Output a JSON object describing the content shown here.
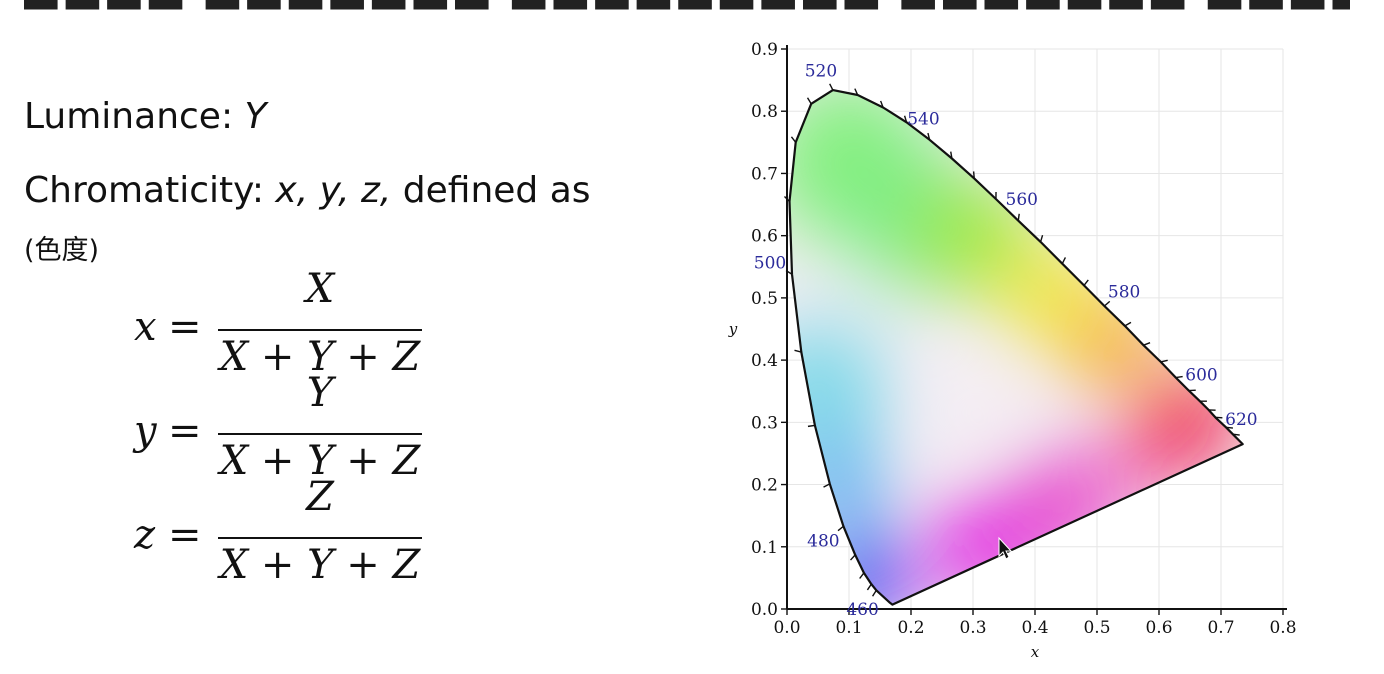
{
  "slide": {
    "luminance_label": "Luminance: ",
    "luminance_var": "Y",
    "chroma_label": "Chromaticity: ",
    "chroma_vars": "x, y, z,",
    "chroma_suffix": " defined as",
    "chinese_note": "(色度)"
  },
  "equations": [
    {
      "lhs": "x",
      "numerator": "X",
      "denominator_terms": [
        "X",
        "+",
        "Y",
        "+",
        "Z"
      ]
    },
    {
      "lhs": "y",
      "numerator": "Y",
      "denominator_terms": [
        "X",
        "+",
        "Y",
        "+",
        "Z"
      ]
    },
    {
      "lhs": "z",
      "numerator": "Z",
      "denominator_terms": [
        "X",
        "+",
        "Y",
        "+",
        "Z"
      ]
    }
  ],
  "equals_sign": "=",
  "chart_data": {
    "type": "chromaticity-diagram",
    "xlabel": "x",
    "ylabel": "y",
    "xlim": [
      0.0,
      0.8
    ],
    "ylim": [
      0.0,
      0.9
    ],
    "x_ticks": [
      "0.0",
      "0.1",
      "0.2",
      "0.3",
      "0.4",
      "0.5",
      "0.6",
      "0.7",
      "0.8"
    ],
    "y_ticks": [
      "0.0",
      "0.1",
      "0.2",
      "0.3",
      "0.4",
      "0.5",
      "0.6",
      "0.7",
      "0.8",
      "0.9"
    ],
    "grid": true,
    "locus": [
      {
        "wl": 450,
        "x": 0.17,
        "y": 0.007
      },
      {
        "wl": 455,
        "x": 0.165,
        "y": 0.011
      },
      {
        "wl": 460,
        "x": 0.144,
        "y": 0.03
      },
      {
        "wl": 465,
        "x": 0.136,
        "y": 0.04
      },
      {
        "wl": 470,
        "x": 0.124,
        "y": 0.058
      },
      {
        "wl": 475,
        "x": 0.11,
        "y": 0.087
      },
      {
        "wl": 480,
        "x": 0.091,
        "y": 0.133
      },
      {
        "wl": 485,
        "x": 0.069,
        "y": 0.201
      },
      {
        "wl": 490,
        "x": 0.045,
        "y": 0.295
      },
      {
        "wl": 495,
        "x": 0.023,
        "y": 0.413
      },
      {
        "wl": 500,
        "x": 0.008,
        "y": 0.538
      },
      {
        "wl": 505,
        "x": 0.004,
        "y": 0.655
      },
      {
        "wl": 510,
        "x": 0.014,
        "y": 0.75
      },
      {
        "wl": 515,
        "x": 0.039,
        "y": 0.812
      },
      {
        "wl": 520,
        "x": 0.074,
        "y": 0.834
      },
      {
        "wl": 525,
        "x": 0.114,
        "y": 0.826
      },
      {
        "wl": 530,
        "x": 0.155,
        "y": 0.806
      },
      {
        "wl": 535,
        "x": 0.193,
        "y": 0.782
      },
      {
        "wl": 540,
        "x": 0.23,
        "y": 0.754
      },
      {
        "wl": 545,
        "x": 0.266,
        "y": 0.724
      },
      {
        "wl": 550,
        "x": 0.302,
        "y": 0.692
      },
      {
        "wl": 555,
        "x": 0.337,
        "y": 0.659
      },
      {
        "wl": 560,
        "x": 0.373,
        "y": 0.624
      },
      {
        "wl": 565,
        "x": 0.409,
        "y": 0.59
      },
      {
        "wl": 570,
        "x": 0.444,
        "y": 0.555
      },
      {
        "wl": 575,
        "x": 0.479,
        "y": 0.52
      },
      {
        "wl": 580,
        "x": 0.512,
        "y": 0.487
      },
      {
        "wl": 585,
        "x": 0.545,
        "y": 0.455
      },
      {
        "wl": 590,
        "x": 0.575,
        "y": 0.424
      },
      {
        "wl": 595,
        "x": 0.603,
        "y": 0.397
      },
      {
        "wl": 600,
        "x": 0.627,
        "y": 0.372
      },
      {
        "wl": 605,
        "x": 0.648,
        "y": 0.351
      },
      {
        "wl": 610,
        "x": 0.666,
        "y": 0.334
      },
      {
        "wl": 615,
        "x": 0.68,
        "y": 0.32
      },
      {
        "wl": 620,
        "x": 0.691,
        "y": 0.308
      },
      {
        "wl": 630,
        "x": 0.708,
        "y": 0.292
      },
      {
        "wl": 640,
        "x": 0.719,
        "y": 0.281
      },
      {
        "wl": 700,
        "x": 0.735,
        "y": 0.265
      }
    ],
    "wavelength_labels": [
      {
        "text": "460",
        "wl": 460
      },
      {
        "text": "480",
        "wl": 480
      },
      {
        "text": "500",
        "wl": 500
      },
      {
        "text": "520",
        "wl": 520
      },
      {
        "text": "540",
        "wl": 540
      },
      {
        "text": "560",
        "wl": 560
      },
      {
        "text": "580",
        "wl": 580
      },
      {
        "text": "600",
        "wl": 600
      },
      {
        "text": "620",
        "wl": 620
      }
    ],
    "color_anchors": {
      "green": "#7ff07a",
      "yellow_green": "#9ee83a",
      "yellow": "#f2e83a",
      "orange": "#f8a020",
      "red": "#ee1030",
      "magenta": "#e020e0",
      "blue": "#1818f0",
      "cyan": "#7ad8e8",
      "white": "#f4eef4"
    }
  }
}
